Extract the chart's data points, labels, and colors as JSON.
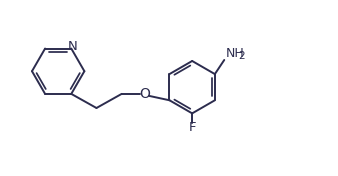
{
  "bg_color": "#ffffff",
  "line_color": "#2c2c4e",
  "line_width": 1.4,
  "font_size_label": 8.5,
  "figsize": [
    3.38,
    1.76
  ],
  "dpi": 100,
  "atoms": {
    "N_label": "N",
    "O_label": "O",
    "F_label": "F",
    "NH2_label": "NH2"
  }
}
